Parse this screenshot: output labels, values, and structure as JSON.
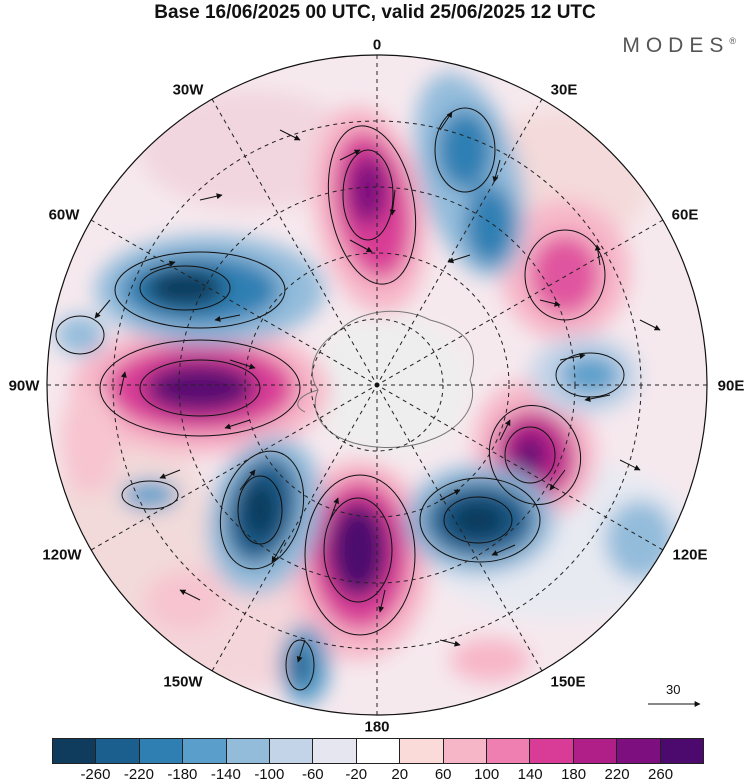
{
  "title": "Base 16/06/2025 00 UTC, valid 25/06/2025 12 UTC",
  "brand": "MODES",
  "brand_mark": "®",
  "longitude_labels": {
    "lon_0": "0",
    "lon_30e": "30E",
    "lon_60e": "60E",
    "lon_90e": "90E",
    "lon_120e": "120E",
    "lon_150e": "150E",
    "lon_180": "180",
    "lon_150w": "150W",
    "lon_120w": "120W",
    "lon_90w": "90W",
    "lon_60w": "60W",
    "lon_30w": "30W"
  },
  "wind_reference": "30",
  "colorbar": {
    "colors": [
      "#0f3b5c",
      "#1b5f8e",
      "#2f7fb3",
      "#5a9fcb",
      "#93bcdb",
      "#c4d4e8",
      "#e6e6f0",
      "#ffffff",
      "#fbdada",
      "#f7b6c8",
      "#ee7fb0",
      "#d93c96",
      "#b01e87",
      "#7e0f7e",
      "#4d0a6e"
    ],
    "ticks": [
      "-260",
      "-220",
      "-180",
      "-140",
      "-100",
      "-60",
      "-20",
      "20",
      "60",
      "100",
      "140",
      "180",
      "220",
      "260"
    ]
  }
}
